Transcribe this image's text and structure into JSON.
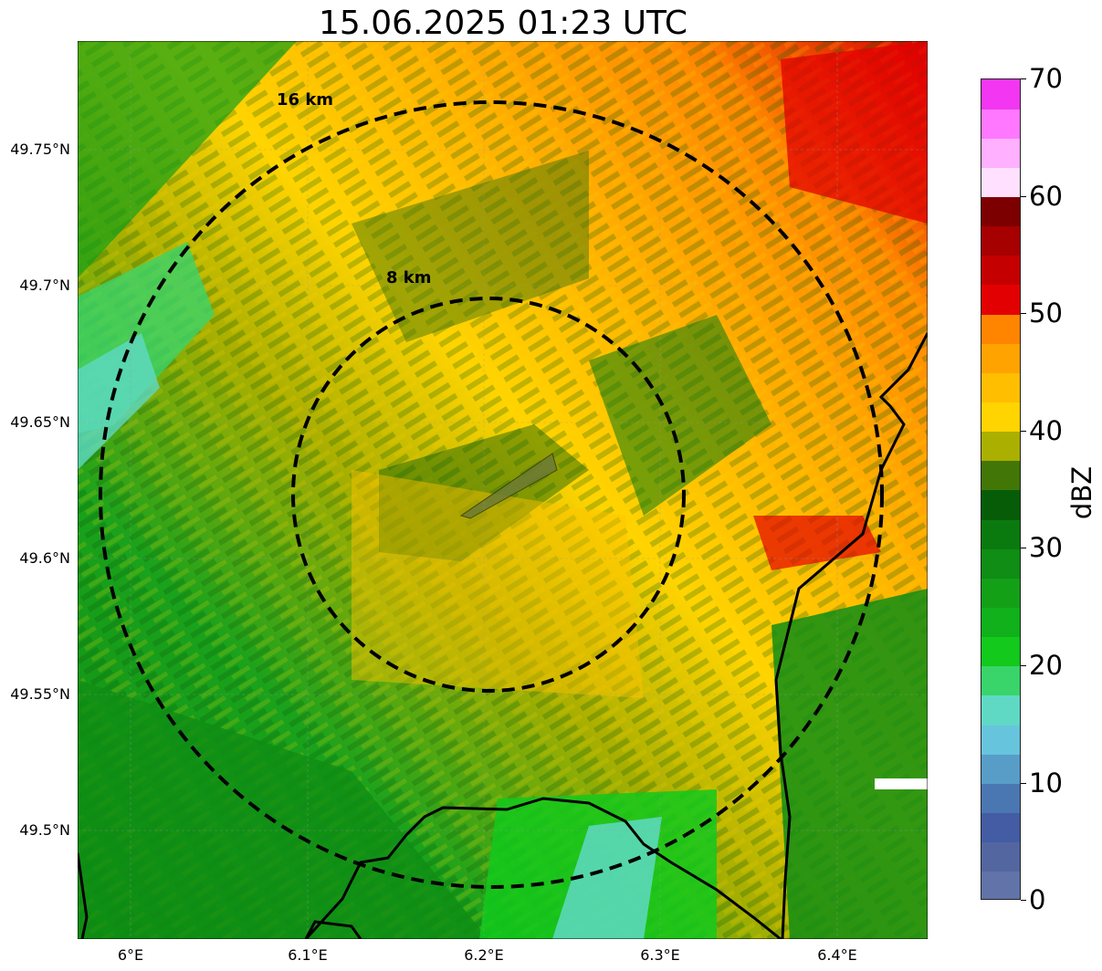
{
  "title": "15.06.2025 01:23 UTC",
  "map": {
    "lon_range": [
      5.97,
      6.45
    ],
    "lat_range": [
      49.46,
      49.79
    ],
    "radar_center": {
      "lon": 6.2,
      "lat": 49.622
    },
    "rings": [
      {
        "label": "8 km",
        "radius_km": 8
      },
      {
        "label": "16 km",
        "radius_km": 16
      }
    ],
    "background_colors": [
      "#1f8f1f",
      "#3f7a0a",
      "#b5b500",
      "#ffd400",
      "#ffb000",
      "#ff7f00",
      "#e00000"
    ]
  },
  "y_ticks": [
    {
      "label": "49.75°N",
      "lat": 49.75
    },
    {
      "label": "49.7°N",
      "lat": 49.7
    },
    {
      "label": "49.65°N",
      "lat": 49.65
    },
    {
      "label": "49.6°N",
      "lat": 49.6
    },
    {
      "label": "49.55°N",
      "lat": 49.55
    },
    {
      "label": "49.5°N",
      "lat": 49.5
    }
  ],
  "x_ticks": [
    {
      "label": "6°E",
      "lon": 6.0
    },
    {
      "label": "6.1°E",
      "lon": 6.1
    },
    {
      "label": "6.2°E",
      "lon": 6.2
    },
    {
      "label": "6.3°E",
      "lon": 6.3
    },
    {
      "label": "6.4°E",
      "lon": 6.4
    }
  ],
  "colorbar": {
    "unit": "dBZ",
    "min": 0,
    "max": 70,
    "tick_labels": [
      "0",
      "10",
      "20",
      "30",
      "40",
      "50",
      "60",
      "70"
    ],
    "colors": [
      "#6173a8",
      "#53669f",
      "#445ca4",
      "#4a77b1",
      "#589dc8",
      "#67c4dd",
      "#5fd9c4",
      "#39d46a",
      "#12c91c",
      "#10b11a",
      "#13a017",
      "#0f8d14",
      "#0a7a0f",
      "#075d07",
      "#427607",
      "#aaaf00",
      "#ffd400",
      "#ffbe00",
      "#ffa300",
      "#ff8500",
      "#e30002",
      "#c50000",
      "#a70000",
      "#7d0000",
      "#ffe1ff",
      "#ffb0ff",
      "#ff78ff",
      "#f236f2"
    ]
  }
}
